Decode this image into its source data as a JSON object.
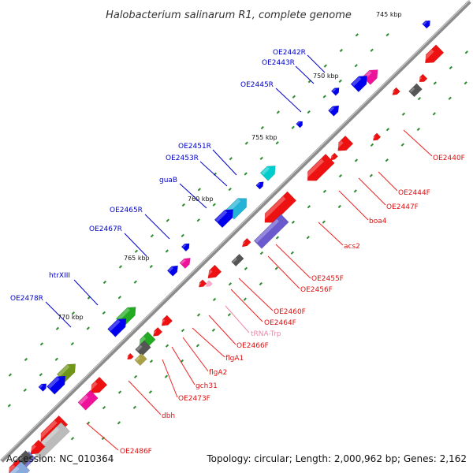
{
  "title": "Halobacterium salinarum R1, complete genome",
  "accession_text": "Accession: NC_010364",
  "topology_text": "Topology: circular; Length: 2,000,962 bp; Genes: 2,162",
  "colors": {
    "backbone": "#8c8c8c",
    "tick": "#2e8b2e",
    "forward_label": "#0000cc",
    "reverse_label": "#dd1111",
    "trna_label": "#ee88aa"
  },
  "kbp_markers": [
    "745 kbp",
    "750 kbp",
    "755 kbp",
    "760 kbp",
    "765 kbp",
    "770 kbp"
  ],
  "forward_genes": [
    "OE2442R",
    "OE2443R",
    "OE2445R",
    "OE2451R",
    "OE2453R",
    "guaB",
    "OE2465R",
    "OE2467R",
    "htrXIII",
    "OE2478R"
  ],
  "reverse_genes": [
    "OE2440F",
    "OE2444F",
    "OE2447F",
    "boa4",
    "acs2",
    "OE2455F",
    "OE2456F",
    "OE2460F",
    "OE2464F",
    "tRNA-Trp",
    "OE2466F",
    "flgA1",
    "flgA2",
    "gch31",
    "OE2473F",
    "dbh",
    "OE2486F"
  ]
}
